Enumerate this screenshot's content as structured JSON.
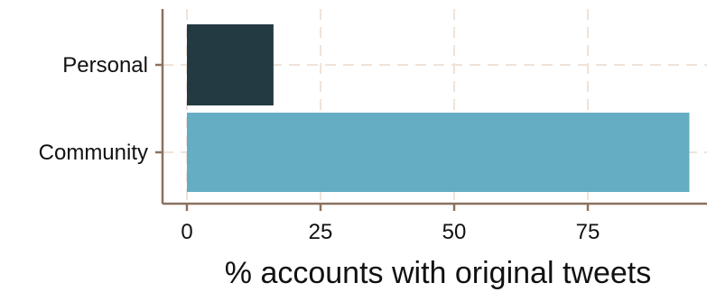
{
  "chart_data": {
    "type": "bar",
    "orientation": "horizontal",
    "categories": [
      "Personal",
      "Community"
    ],
    "values": [
      16.2,
      94.0
    ],
    "colors": [
      "#243a43",
      "#65adc3"
    ],
    "xlabel": "% accounts with original tweets",
    "ylabel": "",
    "xlim": [
      -9,
      96
    ],
    "xticks": [
      0,
      25,
      50,
      75
    ],
    "xtick_labels": [
      "0",
      "25",
      "50",
      "75"
    ],
    "grid": true,
    "grid_color": "#efe3d9",
    "axis_color": "#8b7160",
    "legend": "none"
  }
}
